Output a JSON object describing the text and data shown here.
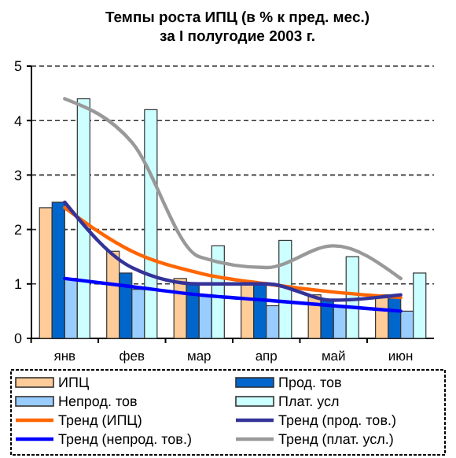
{
  "chart_data": {
    "type": "bar",
    "title": "Темпы роста ИПЦ (в % к пред. мес.)",
    "subtitle": "за I полугодие 2003 г.",
    "categories": [
      "янв",
      "фев",
      "мар",
      "апр",
      "май",
      "июн"
    ],
    "series": [
      {
        "name": "ИПЦ",
        "color": "#ffcc99",
        "values": [
          2.4,
          1.6,
          1.1,
          1.0,
          0.8,
          0.8
        ]
      },
      {
        "name": "Прод. тов",
        "color": "#0066cc",
        "values": [
          2.5,
          1.2,
          1.0,
          1.0,
          0.7,
          0.8
        ]
      },
      {
        "name": "Непрод. тов",
        "color": "#99ccff",
        "values": [
          1.1,
          0.9,
          0.8,
          0.6,
          0.6,
          0.5
        ]
      },
      {
        "name": "Плат. усл",
        "color": "#ccffff",
        "values": [
          4.4,
          4.2,
          1.7,
          1.8,
          1.5,
          1.2
        ]
      },
      {
        "name": "Тренд (ИПЦ)",
        "type": "line",
        "color": "#ff6600",
        "values": [
          2.4,
          1.6,
          1.2,
          1.0,
          0.85,
          0.75
        ]
      },
      {
        "name": "Тренд (прод. тов.)",
        "type": "line",
        "color": "#333399",
        "values": [
          2.5,
          1.3,
          1.0,
          1.0,
          0.7,
          0.8
        ]
      },
      {
        "name": "Тренд (непрод. тов.)",
        "type": "line",
        "color": "#0000ff",
        "values": [
          1.1,
          0.95,
          0.8,
          0.7,
          0.6,
          0.5
        ]
      },
      {
        "name": "Тренд (плат. усл.)",
        "type": "line",
        "color": "#999999",
        "values": [
          4.4,
          3.6,
          1.5,
          1.3,
          1.7,
          1.1
        ]
      }
    ],
    "ylim": [
      0,
      5
    ],
    "yticks": [
      0,
      1,
      2,
      3,
      4,
      5
    ],
    "grid": "y",
    "legend": "bottom"
  }
}
